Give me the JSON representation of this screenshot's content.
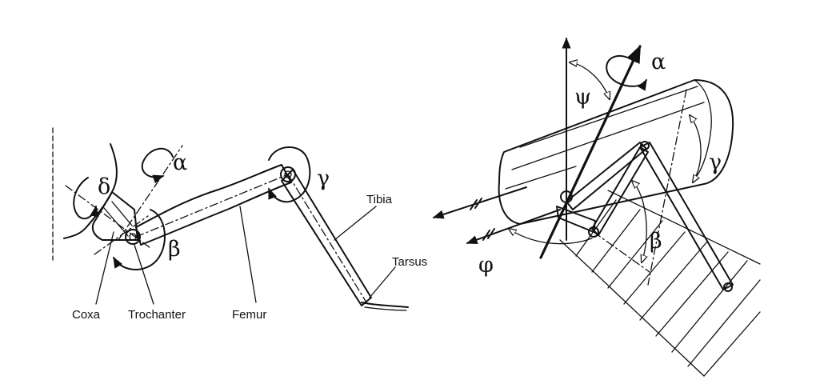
{
  "left_diagram": {
    "labels": {
      "coxa": "Coxa",
      "trochanter": "Trochanter",
      "femur": "Femur",
      "tibia": "Tibia",
      "tarsus": "Tarsus"
    },
    "angles": {
      "alpha": "α",
      "delta": "δ",
      "beta": "β",
      "gamma": "γ"
    }
  },
  "right_diagram": {
    "angles": {
      "alpha": "α",
      "psi": "ψ",
      "gamma": "γ",
      "beta": "β",
      "phi": "φ"
    }
  }
}
